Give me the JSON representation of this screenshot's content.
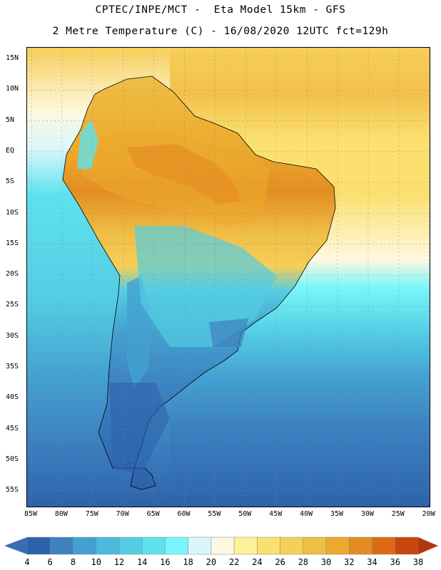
{
  "header": {
    "line1": "CPTEC/INPE/MCT -  Eta Model 15km - GFS",
    "line2": "2 Metre Temperature (C) - 16/08/2020 12UTC fct=129h"
  },
  "map": {
    "lat_labels": [
      "15N",
      "10N",
      "5N",
      "EQ",
      "5S",
      "10S",
      "15S",
      "20S",
      "25S",
      "30S",
      "35S",
      "40S",
      "45S",
      "50S",
      "55S"
    ],
    "lon_labels": [
      "85W",
      "80W",
      "75W",
      "70W",
      "65W",
      "60W",
      "55W",
      "50W",
      "45W",
      "40W",
      "35W",
      "30W",
      "25W",
      "20W"
    ]
  },
  "colorbar": {
    "labels": [
      "4",
      "6",
      "8",
      "10",
      "12",
      "14",
      "16",
      "18",
      "20",
      "22",
      "24",
      "26",
      "28",
      "30",
      "32",
      "34",
      "36",
      "38"
    ],
    "low_color": "#3a6db4",
    "high_color": "#b3370e",
    "colors": [
      "#2d62ab",
      "#3d82c1",
      "#44a0d0",
      "#4cb8dc",
      "#53cde3",
      "#5ee2ee",
      "#7af6fa",
      "#d9f7fb",
      "#fff8e0",
      "#fff09a",
      "#fbe070",
      "#f6cf58",
      "#efbe45",
      "#ecaa2d",
      "#e38d22",
      "#dc6a17",
      "#c8470e"
    ]
  }
}
